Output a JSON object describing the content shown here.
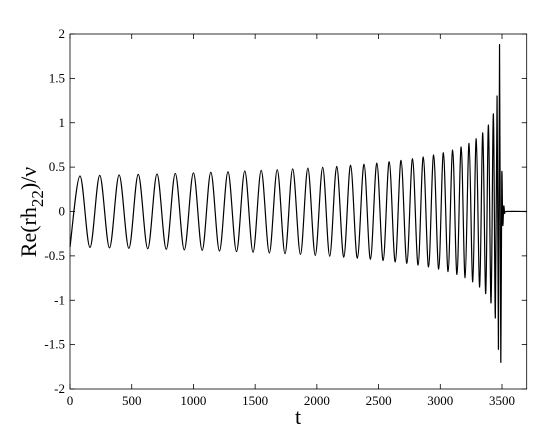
{
  "chart_data": {
    "type": "line",
    "xlabel": "t",
    "ylabel": {
      "text": "Re(rh",
      "sub": "22",
      "after": ")/ν"
    },
    "xlim": [
      0,
      3700
    ],
    "ylim": [
      -2,
      2
    ],
    "xticks": [
      0,
      500,
      1000,
      1500,
      2000,
      2500,
      3000,
      3500
    ],
    "yticks": [
      -2,
      -1.5,
      -1,
      -0.5,
      0,
      0.5,
      1,
      1.5,
      2
    ],
    "grid": false,
    "series": [
      {
        "name": "Re(rh22)/ν",
        "color": "#000000",
        "x": [
          0,
          81,
          162,
          241,
          320,
          398,
          477,
          553,
          630,
          705,
          780,
          853,
          926,
          1000,
          1071,
          1141,
          1211,
          1280,
          1349,
          1416,
          1483,
          1549,
          1615,
          1679,
          1742,
          1804,
          1867,
          1927,
          1987,
          2047,
          2104,
          2161,
          2218,
          2273,
          2328,
          2382,
          2434,
          2486,
          2537,
          2586,
          2635,
          2682,
          2729,
          2775,
          2820,
          2862,
          2905,
          2946,
          2987,
          3025,
          3063,
          3100,
          3135,
          3169,
          3201,
          3233,
          3263,
          3291,
          3319,
          3344,
          3368,
          3390,
          3411,
          3430,
          3446,
          3460,
          3471,
          3480,
          3490,
          3498,
          3506,
          3514,
          3522,
          3535,
          3700
        ],
        "values": [
          -0.4,
          0.4,
          -0.405,
          0.407,
          -0.41,
          0.412,
          -0.415,
          0.418,
          -0.42,
          0.423,
          -0.426,
          0.429,
          -0.432,
          0.435,
          -0.438,
          0.442,
          -0.445,
          0.448,
          -0.452,
          0.456,
          -0.459,
          0.463,
          -0.467,
          0.471,
          -0.475,
          0.48,
          -0.484,
          0.489,
          -0.494,
          0.499,
          -0.504,
          0.509,
          -0.515,
          0.521,
          -0.527,
          0.533,
          -0.539,
          0.546,
          -0.553,
          0.561,
          -0.569,
          0.577,
          -0.585,
          0.595,
          -0.604,
          0.614,
          -0.625,
          0.637,
          -0.649,
          0.662,
          -0.677,
          0.692,
          -0.709,
          0.727,
          -0.746,
          0.768,
          -0.793,
          0.82,
          -0.851,
          0.886,
          -0.926,
          0.974,
          -1.03,
          1.1,
          -1.2,
          1.3,
          -1.55,
          1.88,
          -1.68,
          0.4,
          -0.15,
          0.06,
          -0.02,
          0,
          0
        ]
      }
    ]
  }
}
